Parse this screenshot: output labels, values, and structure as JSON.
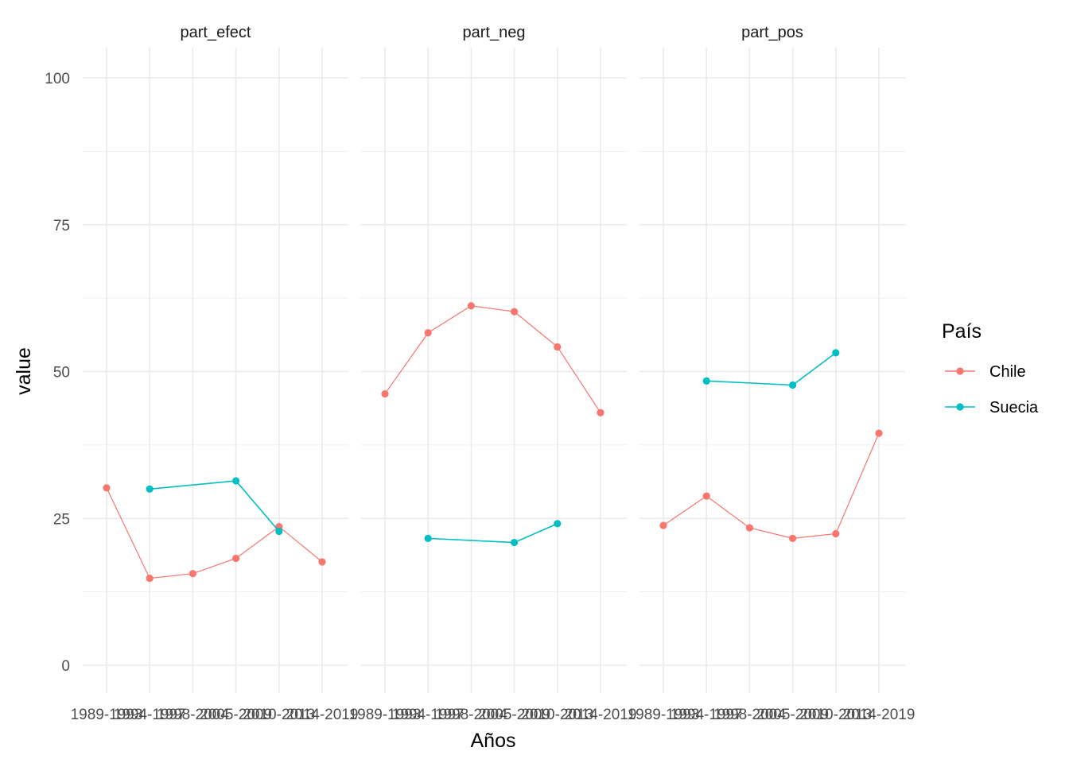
{
  "chart_data": {
    "type": "line",
    "xlabel": "Años",
    "ylabel": "value",
    "ylim": [
      -5,
      105
    ],
    "yticks": [
      0,
      25,
      50,
      75,
      100
    ],
    "categories": [
      "1989-1993",
      "1994-1997",
      "1998-2004",
      "2005-2009",
      "2010-2013",
      "2014-2019"
    ],
    "legend": {
      "title": "País",
      "position": "right",
      "items": [
        {
          "name": "Chile",
          "color": "#F8766D"
        },
        {
          "name": "Suecia",
          "color": "#00BFC4"
        }
      ]
    },
    "panels": [
      {
        "strip": "part_efect",
        "series": [
          {
            "name": "Chile",
            "values": [
              30.2,
              14.8,
              15.6,
              18.2,
              23.6,
              17.6
            ]
          },
          {
            "name": "Suecia",
            "values": [
              null,
              30.0,
              null,
              31.4,
              22.8,
              null
            ]
          }
        ]
      },
      {
        "strip": "part_neg",
        "series": [
          {
            "name": "Chile",
            "values": [
              46.2,
              56.6,
              61.2,
              60.2,
              54.2,
              43.0
            ]
          },
          {
            "name": "Suecia",
            "values": [
              null,
              21.6,
              null,
              20.9,
              24.1,
              null
            ]
          }
        ]
      },
      {
        "strip": "part_pos",
        "series": [
          {
            "name": "Chile",
            "values": [
              23.8,
              28.8,
              23.4,
              21.6,
              22.4,
              39.5
            ]
          },
          {
            "name": "Suecia",
            "values": [
              null,
              48.4,
              null,
              47.7,
              53.2,
              null
            ]
          }
        ]
      }
    ],
    "grid": true
  }
}
